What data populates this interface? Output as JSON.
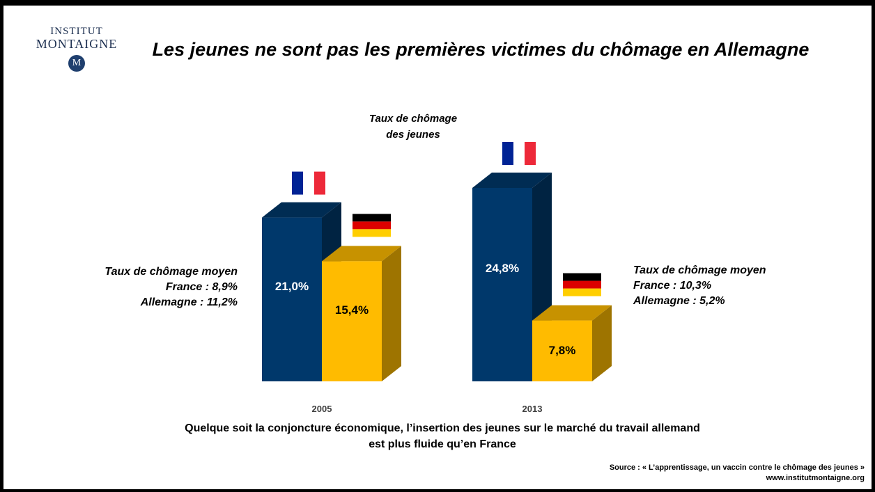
{
  "title": "Les jeunes ne sont pas les premières victimes du chômage en Allemagne",
  "logo": {
    "line1": "INSTITUT",
    "line2": "MONTAIGNE",
    "seal": "M"
  },
  "chart_data": {
    "type": "bar",
    "subtitle_line1": "Taux de chômage",
    "subtitle_line2": "des jeunes",
    "categories": [
      "2005",
      "2013"
    ],
    "series": [
      {
        "country": "france",
        "values": [
          21.0,
          24.8
        ],
        "labels": [
          "21,0%",
          "24,8%"
        ],
        "color": "#00386b"
      },
      {
        "country": "germany",
        "values": [
          15.4,
          7.8
        ],
        "labels": [
          "15,4%",
          "7,8%"
        ],
        "color": "#ffbb00"
      }
    ],
    "ylim": [
      0,
      25
    ],
    "grid": false
  },
  "notes": {
    "left": {
      "line1": "Taux de chômage moyen",
      "line2": "France : 8,9%",
      "line3": "Allemagne : 11,2%"
    },
    "right": {
      "line1": "Taux de chômage moyen",
      "line2": "France : 10,3%",
      "line3": "Allemagne : 5,2%"
    }
  },
  "caption": {
    "line1": "Quelque soit la conjoncture économique, l’insertion des jeunes sur le marché du travail allemand",
    "line2": "est plus fluide qu’en France"
  },
  "source": {
    "line1": "Source : « L’apprentissage, un vaccin contre le chômage des jeunes »",
    "line2": "www.institutmontaigne.org"
  },
  "colors": {
    "france_blue": "#002395",
    "france_red": "#ed2939",
    "germany_black": "#000000",
    "germany_red": "#dd0000",
    "germany_gold": "#ffce00"
  }
}
